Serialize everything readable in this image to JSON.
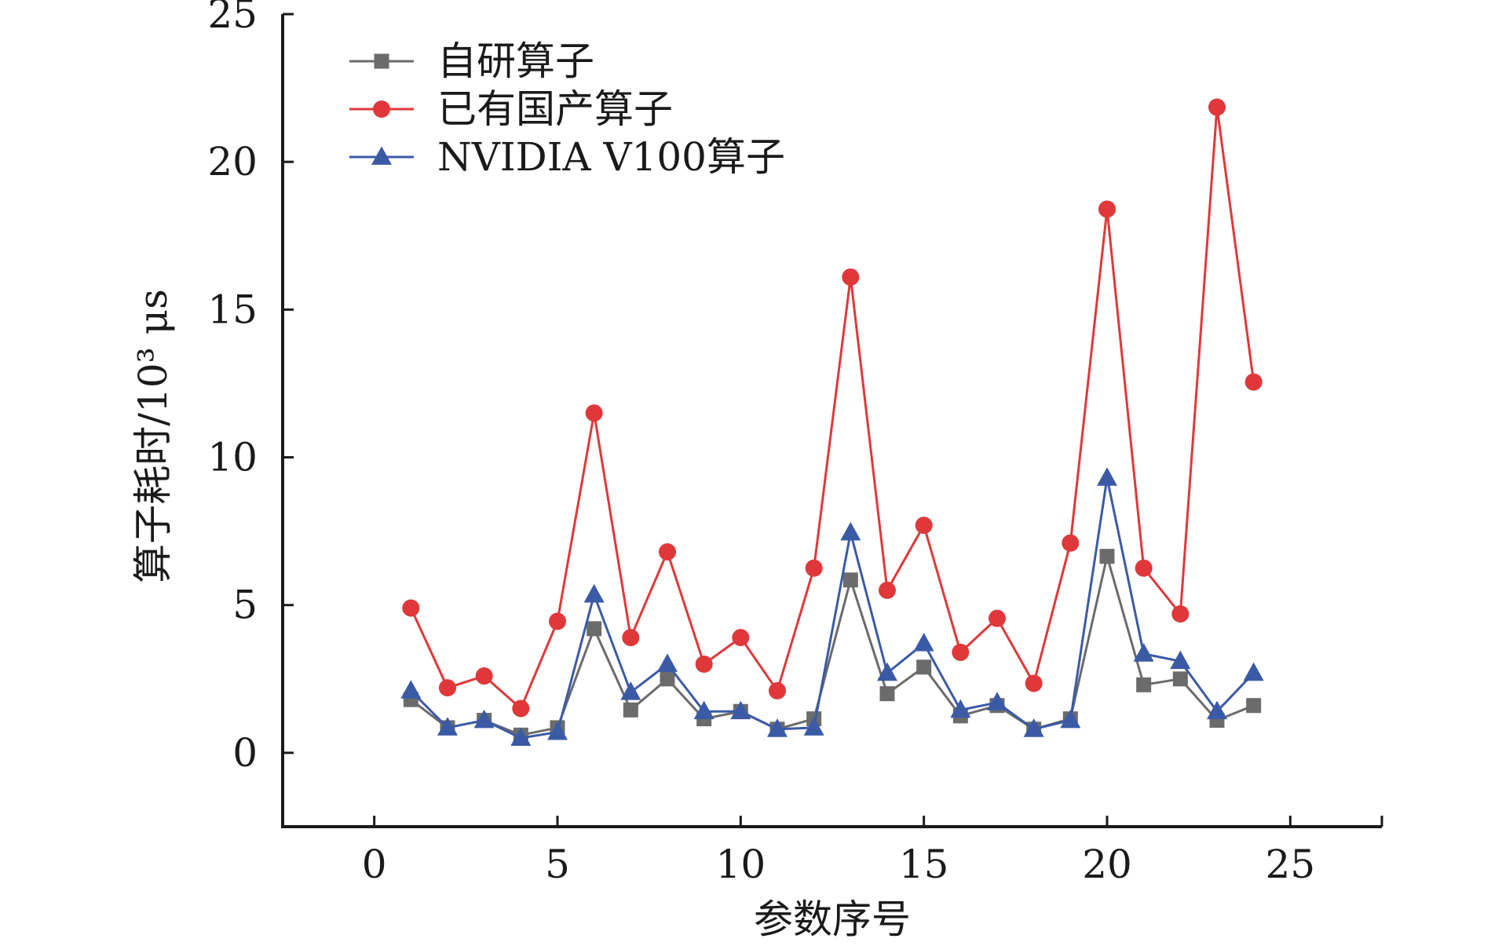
{
  "chart_data": {
    "type": "line",
    "xlabel": "参数序号",
    "ylabel": "算子耗时/10³ μs",
    "xlim": [
      -2.5,
      27.5
    ],
    "ylim": [
      -2.5,
      25
    ],
    "xticks": [
      0,
      5,
      10,
      15,
      20,
      25
    ],
    "yticks": [
      0,
      5,
      10,
      15,
      20,
      25
    ],
    "x": [
      1,
      2,
      3,
      4,
      5,
      6,
      7,
      8,
      9,
      10,
      11,
      12,
      13,
      14,
      15,
      16,
      17,
      18,
      19,
      20,
      21,
      22,
      23,
      24
    ],
    "legend_position": "top-left",
    "grid": false,
    "series": [
      {
        "name": "自研算子",
        "marker": "square",
        "color": "#6b6b6b",
        "values": [
          1.8,
          0.85,
          1.1,
          0.6,
          0.85,
          4.2,
          1.45,
          2.5,
          1.15,
          1.4,
          0.8,
          1.15,
          5.85,
          2.0,
          2.9,
          1.25,
          1.6,
          0.8,
          1.15,
          6.65,
          2.3,
          2.5,
          1.1,
          1.6
        ]
      },
      {
        "name": "已有国产算子",
        "marker": "circle",
        "color": "#e0383a",
        "values": [
          4.9,
          2.2,
          2.6,
          1.5,
          4.45,
          11.5,
          3.9,
          6.8,
          3.0,
          3.9,
          2.1,
          6.25,
          16.1,
          5.5,
          7.7,
          3.4,
          4.55,
          2.35,
          7.1,
          18.4,
          6.25,
          4.7,
          21.85,
          12.55
        ]
      },
      {
        "name": "NVIDIA V100算子",
        "marker": "triangle",
        "color": "#3b5aa6",
        "values": [
          2.1,
          0.85,
          1.1,
          0.5,
          0.7,
          5.35,
          2.05,
          3.0,
          1.4,
          1.4,
          0.8,
          0.85,
          7.45,
          2.7,
          3.7,
          1.45,
          1.7,
          0.8,
          1.1,
          9.3,
          3.35,
          3.1,
          1.4,
          2.7
        ]
      }
    ]
  }
}
